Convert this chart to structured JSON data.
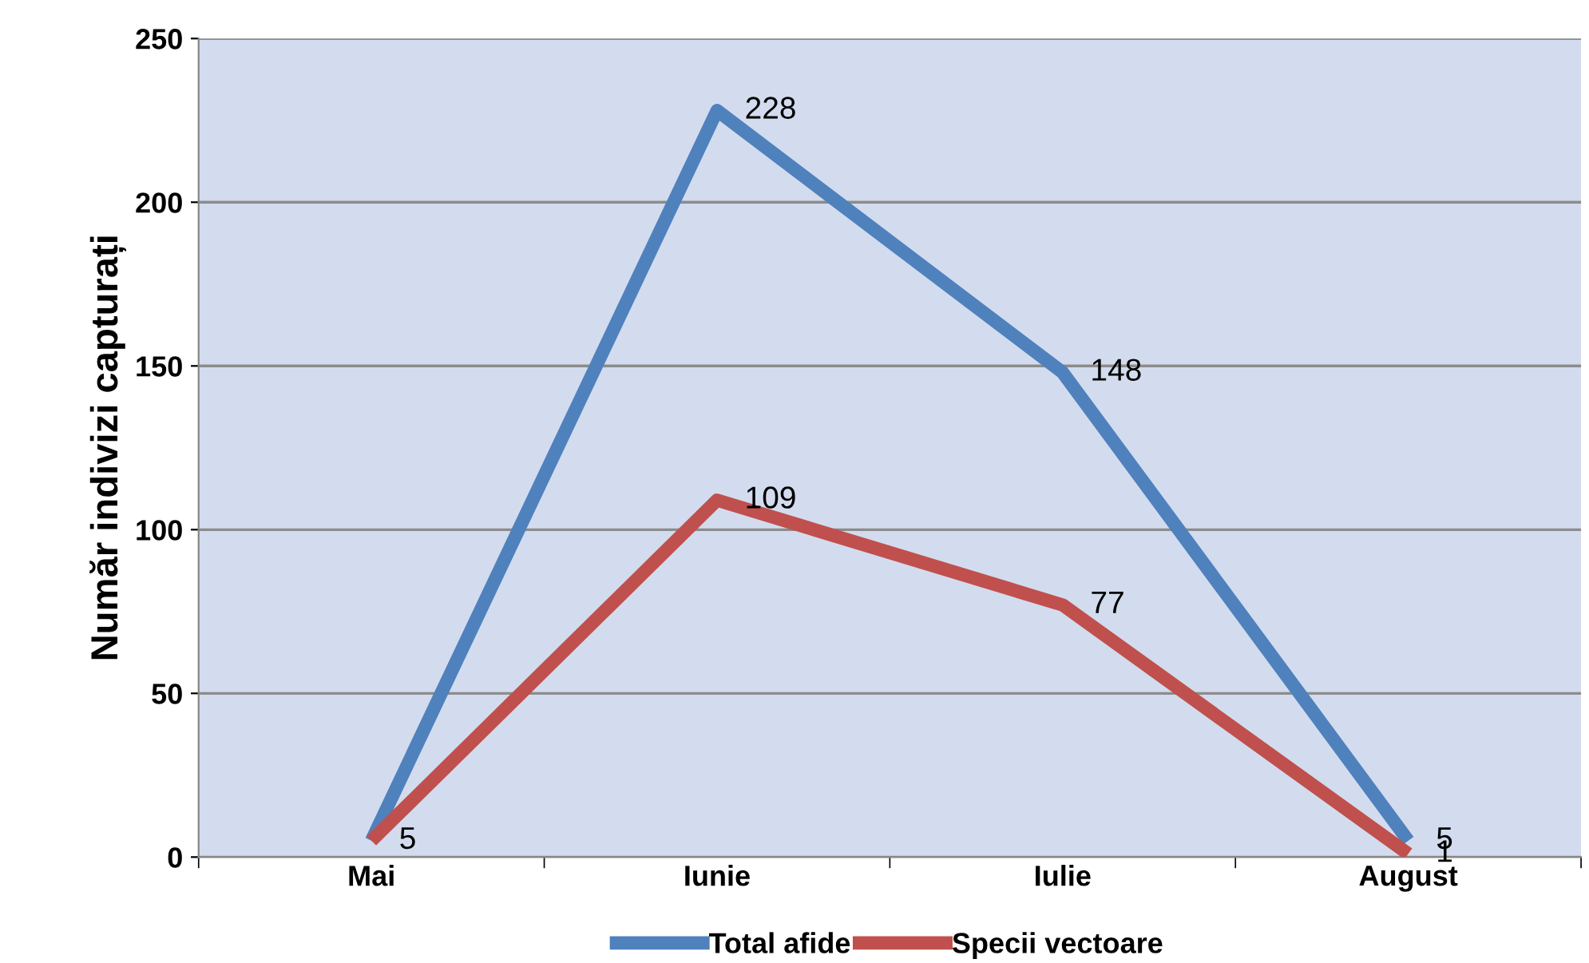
{
  "chart_data": {
    "type": "line",
    "ylabel": "Număr indivizi capturați",
    "categories": [
      "Mai",
      "Iunie",
      "Iulie",
      "August"
    ],
    "series": [
      {
        "name": "Total afide",
        "color": "#4f81bd",
        "values": [
          5,
          228,
          148,
          5
        ],
        "value_labels": [
          "5",
          "228",
          "148",
          "5"
        ]
      },
      {
        "name": "Specii vectoare",
        "color": "#c0504d",
        "values": [
          5,
          109,
          77,
          1
        ],
        "value_labels": [
          null,
          "109",
          "77",
          "1"
        ]
      }
    ],
    "ylim": [
      0,
      250
    ],
    "yticks": [
      0,
      50,
      100,
      150,
      200,
      250
    ],
    "grid": "y",
    "legend": "bottom",
    "marker": "none",
    "line_style": "solid"
  }
}
